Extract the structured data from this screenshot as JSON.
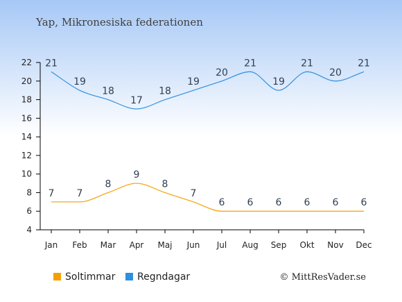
{
  "chart_data": {
    "type": "line",
    "title": "Yap, Mikronesiska federationen",
    "categories": [
      "Jan",
      "Feb",
      "Mar",
      "Apr",
      "Maj",
      "Jun",
      "Jul",
      "Aug",
      "Sep",
      "Okt",
      "Nov",
      "Dec"
    ],
    "series": [
      {
        "name": "Soltimmar",
        "color": "#f5a000",
        "values": [
          7,
          7,
          8,
          9,
          8,
          7,
          6,
          6,
          6,
          6,
          6,
          6
        ]
      },
      {
        "name": "Regndagar",
        "color": "#2f8fe0",
        "values": [
          21,
          19,
          18,
          17,
          18,
          19,
          20,
          21,
          19,
          21,
          20,
          21
        ]
      }
    ],
    "ylim": [
      4,
      22
    ],
    "yticks": [
      4,
      6,
      8,
      10,
      12,
      14,
      16,
      18,
      20,
      22
    ],
    "grid": false,
    "legend_placement": "bottom-left"
  },
  "credit": "© MittResVader.se"
}
